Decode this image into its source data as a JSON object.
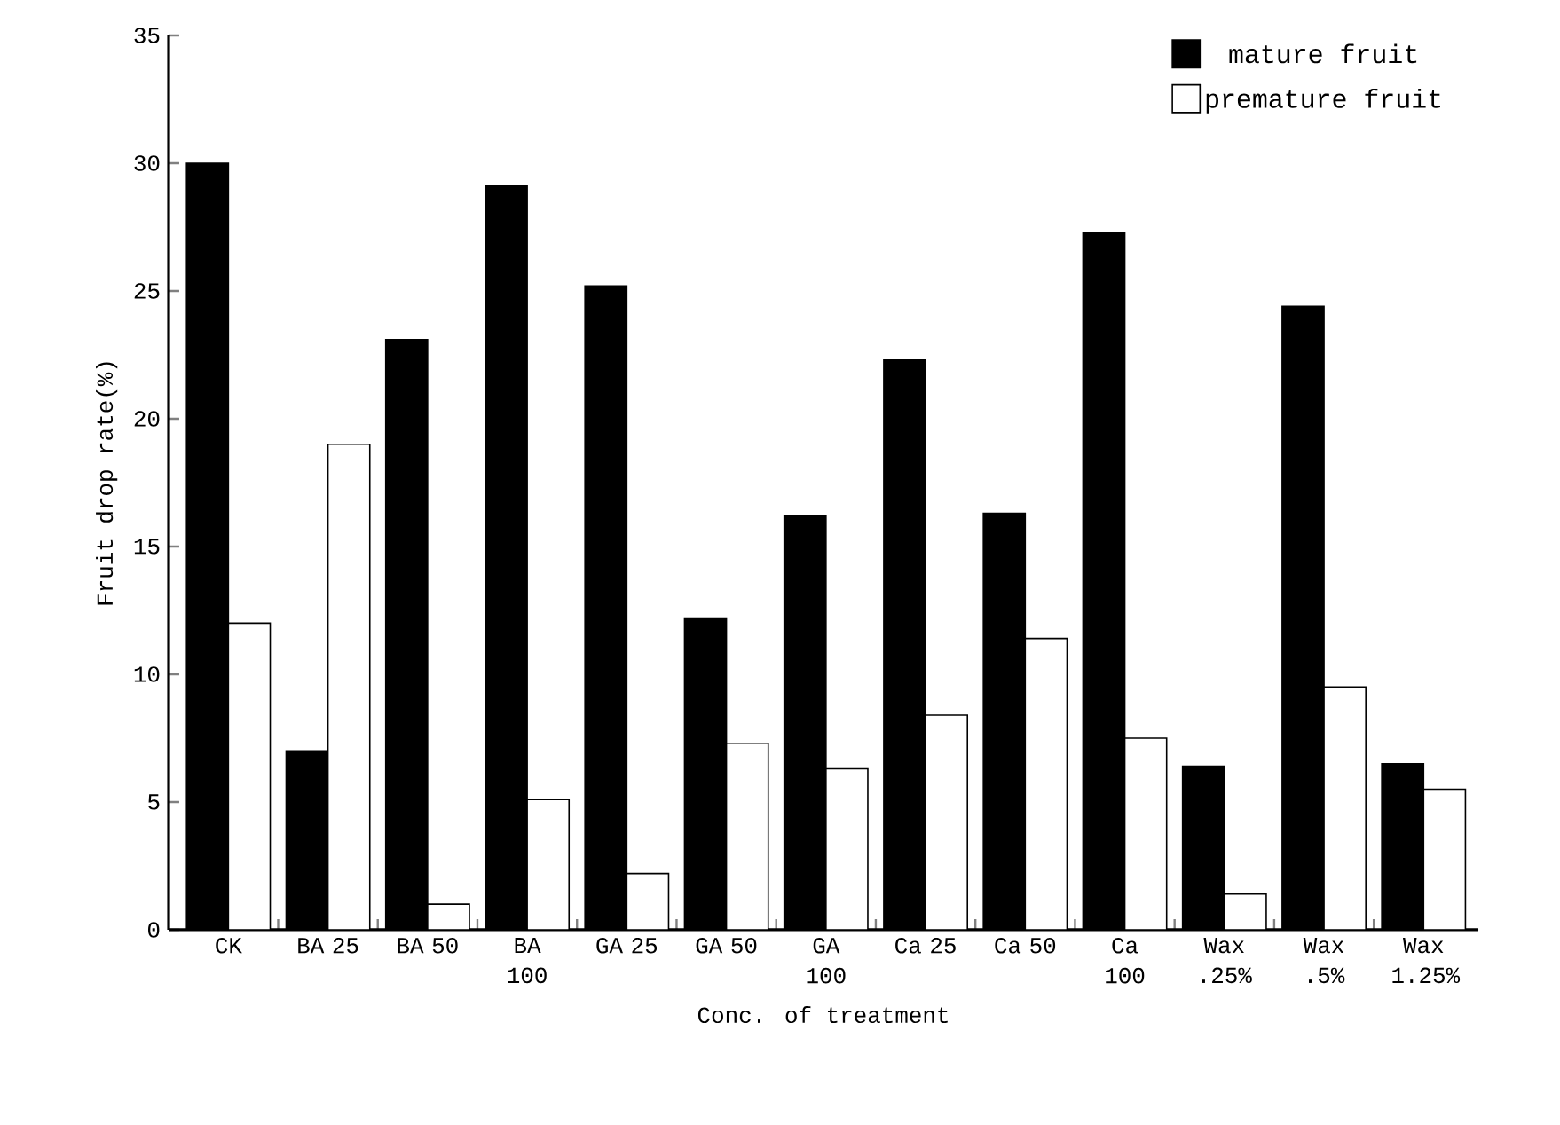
{
  "chart_data": {
    "type": "bar",
    "xlabel": "Conc. of treatment",
    "ylabel": "Fruit drop rate(%)",
    "categories": [
      "CK",
      "BA 25",
      "BA 50",
      "BA 100",
      "GA 25",
      "GA 50",
      "GA 100",
      "Ca 25",
      "Ca 50",
      "Ca 100",
      "Wax .25%",
      "Wax .5%",
      "Wax 1.25%"
    ],
    "series": [
      {
        "name": "mature fruit",
        "color": "#000000",
        "values": [
          30,
          7.0,
          23.1,
          29.1,
          25.2,
          12.2,
          16.2,
          22.3,
          16.3,
          27.3,
          6.4,
          24.4,
          6.5
        ]
      },
      {
        "name": "premature fruit",
        "color": "#ffffff",
        "values": [
          12,
          19,
          1.0,
          5.1,
          2.2,
          7.3,
          6.3,
          8.4,
          11.4,
          7.5,
          1.4,
          9.5,
          5.5
        ]
      }
    ],
    "ylim": [
      0,
      35
    ],
    "yticks": [
      0,
      5,
      10,
      15,
      20,
      25,
      30,
      35
    ],
    "legend": "top right"
  }
}
